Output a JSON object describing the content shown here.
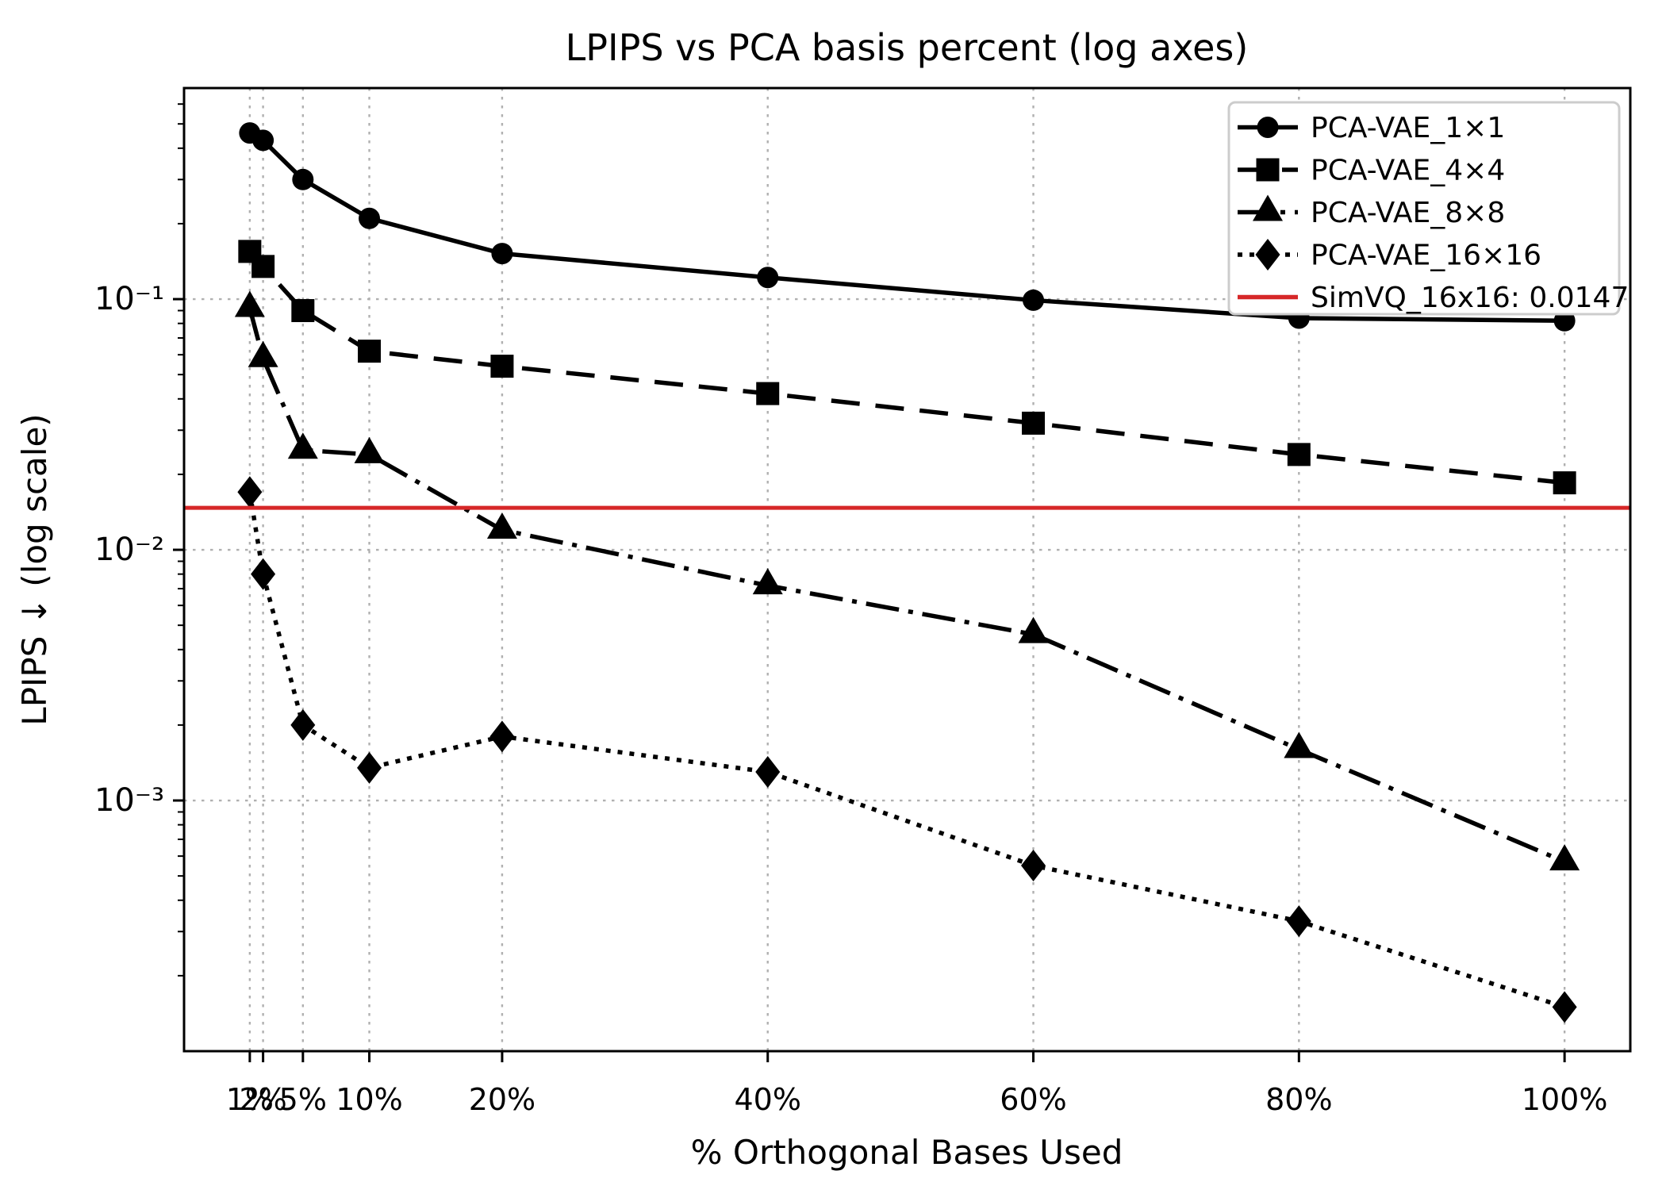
{
  "chart_data": {
    "type": "line",
    "title": "LPIPS vs PCA basis percent (log axes)",
    "xlabel": "% Orthogonal Bases Used",
    "ylabel": "LPIPS ↓ (log scale)",
    "x_scale": "linear",
    "y_scale": "log",
    "xlim": [
      -3.95,
      104.95
    ],
    "ylim": [
      0.0001,
      0.695
    ],
    "grid": true,
    "legend_position": "upper right",
    "x": [
      1,
      2,
      5,
      10,
      20,
      40,
      60,
      80,
      100
    ],
    "x_tick_labels": [
      "1%",
      "2%",
      "5%",
      "10%",
      "20%",
      "40%",
      "60%",
      "80%",
      "100%"
    ],
    "y_ticks": [
      0.1,
      0.01,
      0.001
    ],
    "y_tick_labels": [
      "10⁻¹",
      "10⁻²",
      "10⁻³"
    ],
    "series": [
      {
        "name": "PCA-VAE_1×1",
        "marker": "circle",
        "linestyle": "solid",
        "color": "#000000",
        "values": [
          0.46,
          0.43,
          0.3,
          0.21,
          0.152,
          0.122,
          0.099,
          0.084,
          0.082
        ]
      },
      {
        "name": "PCA-VAE_4×4",
        "marker": "square",
        "linestyle": "dashed",
        "color": "#000000",
        "values": [
          0.155,
          0.135,
          0.09,
          0.062,
          0.054,
          0.042,
          0.032,
          0.024,
          0.0185
        ]
      },
      {
        "name": "PCA-VAE_8×8",
        "marker": "triangle",
        "linestyle": "dashdot",
        "color": "#000000",
        "values": [
          0.092,
          0.058,
          0.025,
          0.024,
          0.012,
          0.0072,
          0.0046,
          0.0016,
          0.00057
        ]
      },
      {
        "name": "PCA-VAE_16×16",
        "marker": "diamond",
        "linestyle": "dotted",
        "color": "#000000",
        "values": [
          0.017,
          0.008,
          0.002,
          0.00135,
          0.0018,
          0.0013,
          0.00055,
          0.00033,
          0.00015
        ]
      }
    ],
    "reference_line": {
      "label": "SimVQ_16x16: 0.0147",
      "value": 0.0147,
      "color": "#d62728"
    },
    "colors": {
      "grid": "#b0b0b0",
      "axis": "#000000",
      "legend_border": "#cccccc",
      "background": "#ffffff"
    }
  }
}
